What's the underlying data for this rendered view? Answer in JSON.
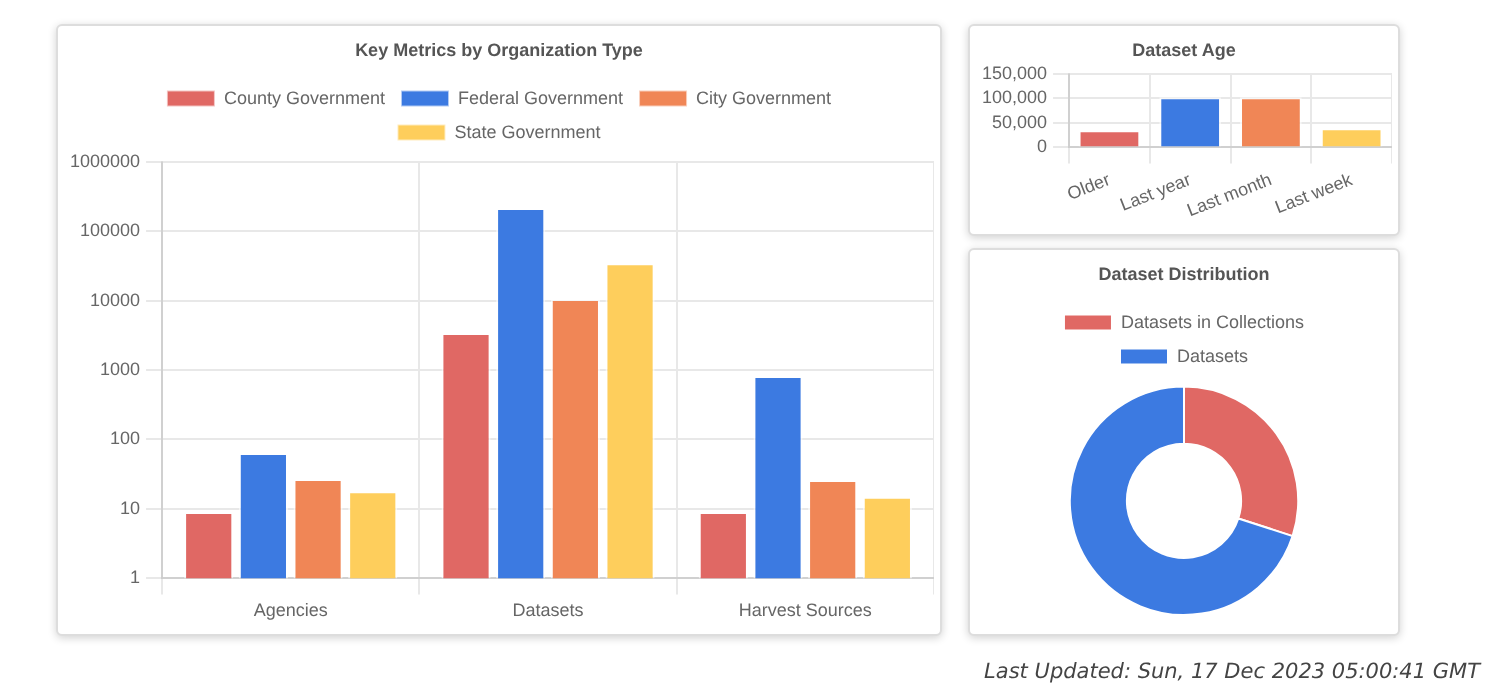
{
  "chart_data": [
    {
      "type": "bar",
      "title": "Key Metrics by Organization Type",
      "categories": [
        "Agencies",
        "Datasets",
        "Harvest Sources"
      ],
      "series": [
        {
          "name": "County Government",
          "color": "#e06864",
          "values": [
            9,
            3400,
            9
          ]
        },
        {
          "name": "Federal Government",
          "color": "#3c7ae1",
          "values": [
            64,
            215000,
            820
          ]
        },
        {
          "name": "City Government",
          "color": "#f08656",
          "values": [
            27,
            10500,
            26
          ]
        },
        {
          "name": "State Government",
          "color": "#fece5c",
          "values": [
            18,
            34500,
            15
          ]
        }
      ],
      "log": "y",
      "ylim": [
        1,
        1000000
      ],
      "yticks": [
        1,
        10,
        100,
        1000,
        10000,
        100000,
        1000000
      ],
      "grid": true,
      "legend": "top"
    },
    {
      "type": "bar",
      "title": "Dataset Age",
      "categories": [
        "Older",
        "Last year",
        "Last month",
        "Last week"
      ],
      "values": [
        35000,
        102000,
        102000,
        39000
      ],
      "colors": [
        "#e06864",
        "#3c7ae1",
        "#f08656",
        "#fece5c"
      ],
      "ylim": [
        0,
        150000
      ],
      "yticks": [
        0,
        {
          "value": 50000,
          "label": "50,000"
        },
        {
          "value": 100000,
          "label": "100,000"
        },
        {
          "value": 150000,
          "label": "150,000"
        }
      ],
      "grid": true
    },
    {
      "type": "donut",
      "title": "Dataset Distribution",
      "categories": [
        "Datasets in Collections",
        "Datasets"
      ],
      "values": [
        30,
        70
      ],
      "colors": [
        "#e06864",
        "#3c7ae1"
      ],
      "legend": "top",
      "annotations": [
        "Last Updated: Sun, 17 Dec 2023 05:00:41 GMT"
      ]
    }
  ]
}
